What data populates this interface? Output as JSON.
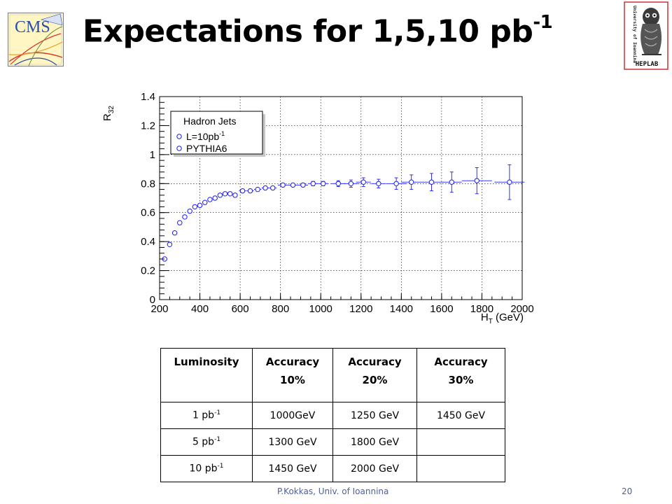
{
  "header": {
    "title_main": "Expectations for 1,5,10 pb",
    "title_sup": "-1",
    "cms_logo_text": "CMS",
    "heplab_logo_text": "HEPLAB",
    "heplab_vertical_text": "University of Ioannina"
  },
  "chart_data": {
    "type": "scatter",
    "title": "",
    "xlabel_main": "H",
    "xlabel_sub": "T",
    "xlabel_unit": " (GeV)",
    "ylabel_main": "R",
    "ylabel_sub": "32",
    "xlim": [
      200,
      2000
    ],
    "ylim": [
      0,
      1.4
    ],
    "x_ticks": [
      200,
      400,
      600,
      800,
      1000,
      1200,
      1400,
      1600,
      1800,
      2000
    ],
    "y_ticks": [
      0,
      0.2,
      0.4,
      0.6,
      0.8,
      1,
      1.2,
      1.4
    ],
    "x_tick_labels": [
      "200",
      "400",
      "600",
      "800",
      "1000",
      "1200",
      "1400",
      "1600",
      "1800",
      "2000"
    ],
    "y_tick_labels": [
      "0",
      "0.2",
      "0.4",
      "0.6",
      "0.8",
      "1",
      "1.2",
      "1.4"
    ],
    "grid": true,
    "legend": {
      "placement": "top-left",
      "header": "Hadron Jets",
      "entries": [
        {
          "label_main": "L=10pb",
          "label_sup": "-1",
          "marker": "open-circle"
        },
        {
          "label_main": "PYTHIA6",
          "label_sup": "",
          "marker": "open-circle"
        }
      ]
    },
    "series": [
      {
        "marker_color": "#1a1aff",
        "x": [
          225,
          250,
          275,
          300,
          325,
          350,
          375,
          400,
          425,
          450,
          475,
          500,
          525,
          550,
          575,
          612,
          650,
          687,
          725,
          762,
          812,
          862,
          912,
          962,
          1012,
          1087,
          1150,
          1212,
          1287,
          1375,
          1450,
          1550,
          1650,
          1775,
          1937
        ],
        "y": [
          0.28,
          0.38,
          0.46,
          0.53,
          0.57,
          0.61,
          0.64,
          0.65,
          0.67,
          0.69,
          0.7,
          0.72,
          0.73,
          0.73,
          0.72,
          0.75,
          0.75,
          0.76,
          0.77,
          0.77,
          0.79,
          0.79,
          0.79,
          0.8,
          0.8,
          0.8,
          0.8,
          0.81,
          0.8,
          0.8,
          0.81,
          0.81,
          0.81,
          0.82,
          0.81
        ],
        "yerr": [
          0.01,
          0.01,
          0.01,
          0.01,
          0.01,
          0.01,
          0.01,
          0.01,
          0.01,
          0.01,
          0.01,
          0.01,
          0.01,
          0.01,
          0.01,
          0.01,
          0.01,
          0.01,
          0.01,
          0.01,
          0.01,
          0.01,
          0.01,
          0.015,
          0.015,
          0.02,
          0.025,
          0.03,
          0.03,
          0.04,
          0.05,
          0.06,
          0.07,
          0.09,
          0.12
        ],
        "xerr": [
          12.5,
          12.5,
          12.5,
          12.5,
          12.5,
          12.5,
          12.5,
          12.5,
          12.5,
          12.5,
          12.5,
          12.5,
          12.5,
          12.5,
          12.5,
          18,
          18,
          18,
          18,
          18,
          25,
          25,
          25,
          25,
          25,
          37,
          37,
          37,
          37,
          50,
          50,
          50,
          50,
          75,
          75
        ]
      }
    ]
  },
  "table": {
    "headers": [
      {
        "line1": "Luminosity",
        "line2": ""
      },
      {
        "line1": "Accuracy",
        "line2": "10%"
      },
      {
        "line1": "Accuracy",
        "line2": "20%"
      },
      {
        "line1": "Accuracy",
        "line2": "30%"
      }
    ],
    "rows": [
      {
        "lum_main": "1 pb",
        "lum_sup": "-1",
        "acc10": "1000GeV",
        "acc20": "1250 GeV",
        "acc30": "1450 GeV"
      },
      {
        "lum_main": "5 pb",
        "lum_sup": "-1",
        "acc10": "1300 GeV",
        "acc20": "1800 GeV",
        "acc30": ""
      },
      {
        "lum_main": "10 pb",
        "lum_sup": "-1",
        "acc10": "1450 GeV",
        "acc20": "2000 GeV",
        "acc30": ""
      }
    ]
  },
  "footer": {
    "author": "P.Kokkas, Univ. of Ioannina",
    "page_number": "20"
  },
  "colors": {
    "data_blue": "#1a1aff",
    "footer_text": "#4a5fa5",
    "cms_blue": "#2b4ea8",
    "cms_red": "#d23b2e"
  }
}
